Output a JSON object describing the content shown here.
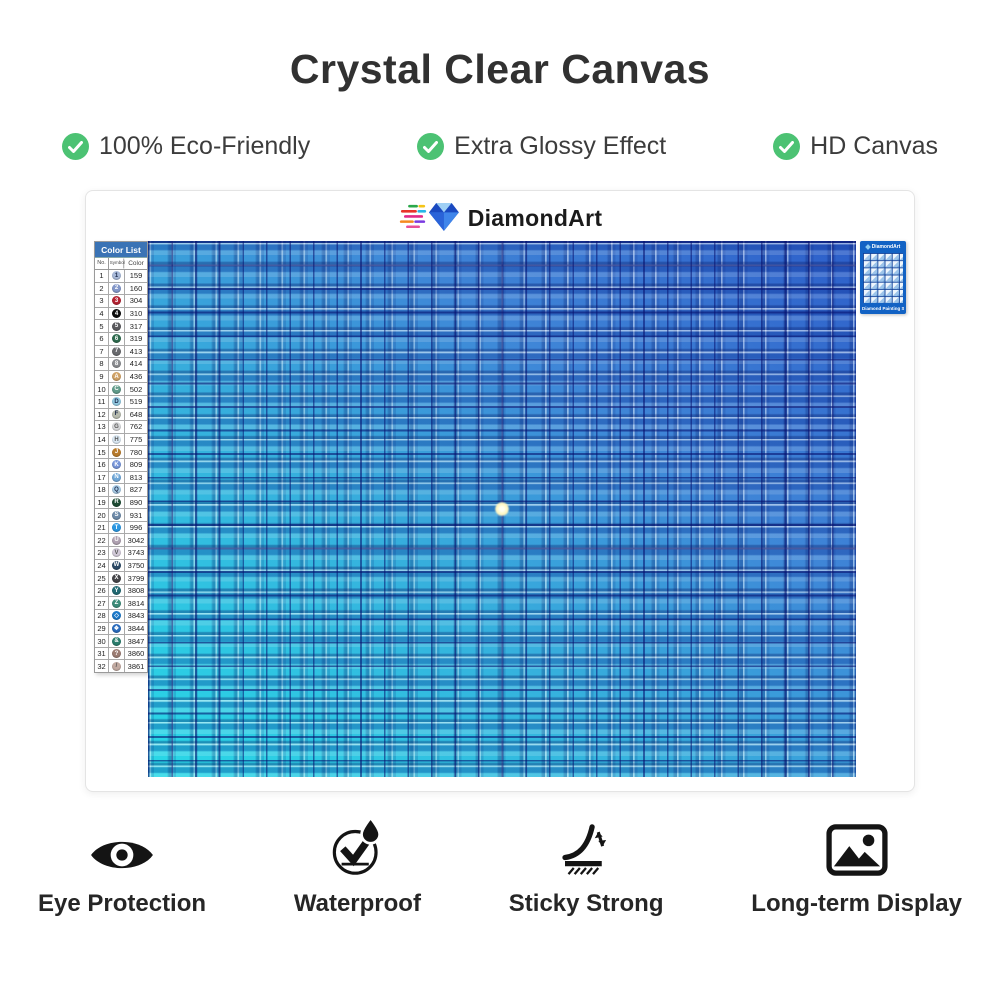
{
  "title": "Crystal Clear Canvas",
  "features": [
    {
      "label": "100% Eco-Friendly"
    },
    {
      "label": "Extra Glossy Effect"
    },
    {
      "label": "HD Canvas"
    }
  ],
  "brand": {
    "logo_text": "DiamondArt"
  },
  "color_list": {
    "title": "Color List",
    "columns": [
      "No.",
      "Symbol",
      "Color"
    ],
    "rows": [
      {
        "no": "1",
        "sym": "1",
        "code": "159",
        "bg": "#a9bad9",
        "fg": "#1b2a4a"
      },
      {
        "no": "2",
        "sym": "2",
        "code": "160",
        "bg": "#8397c9",
        "fg": "#ffffff"
      },
      {
        "no": "3",
        "sym": "3",
        "code": "304",
        "bg": "#b52332",
        "fg": "#ffffff"
      },
      {
        "no": "4",
        "sym": "4",
        "code": "310",
        "bg": "#0c0c0c",
        "fg": "#ffffff"
      },
      {
        "no": "5",
        "sym": "5",
        "code": "317",
        "bg": "#5a5a5e",
        "fg": "#ffffff"
      },
      {
        "no": "6",
        "sym": "6",
        "code": "319",
        "bg": "#2e6b4e",
        "fg": "#ffffff"
      },
      {
        "no": "7",
        "sym": "7",
        "code": "413",
        "bg": "#696a6e",
        "fg": "#ffffff"
      },
      {
        "no": "8",
        "sym": "8",
        "code": "414",
        "bg": "#8b8d91",
        "fg": "#ffffff"
      },
      {
        "no": "9",
        "sym": "A",
        "code": "436",
        "bg": "#d0a266",
        "fg": "#ffffff"
      },
      {
        "no": "10",
        "sym": "C",
        "code": "502",
        "bg": "#619c8b",
        "fg": "#ffffff"
      },
      {
        "no": "11",
        "sym": "D",
        "code": "519",
        "bg": "#93cae2",
        "fg": "#1b2a4a"
      },
      {
        "no": "12",
        "sym": "F",
        "code": "648",
        "bg": "#b7bbae",
        "fg": "#1b2a4a"
      },
      {
        "no": "13",
        "sym": "G",
        "code": "762",
        "bg": "#d9dadc",
        "fg": "#555555"
      },
      {
        "no": "14",
        "sym": "H",
        "code": "775",
        "bg": "#dbe9f4",
        "fg": "#555555"
      },
      {
        "no": "15",
        "sym": "J",
        "code": "780",
        "bg": "#b87b2c",
        "fg": "#ffffff"
      },
      {
        "no": "16",
        "sym": "K",
        "code": "809",
        "bg": "#7795d9",
        "fg": "#ffffff"
      },
      {
        "no": "17",
        "sym": "N",
        "code": "813",
        "bg": "#70a8d9",
        "fg": "#ffffff"
      },
      {
        "no": "18",
        "sym": "Q",
        "code": "827",
        "bg": "#aacee8",
        "fg": "#1b2a4a"
      },
      {
        "no": "19",
        "sym": "R",
        "code": "890",
        "bg": "#1d4b33",
        "fg": "#ffffff"
      },
      {
        "no": "20",
        "sym": "S",
        "code": "931",
        "bg": "#6c89a8",
        "fg": "#ffffff"
      },
      {
        "no": "21",
        "sym": "T",
        "code": "996",
        "bg": "#2a97e2",
        "fg": "#ffffff"
      },
      {
        "no": "22",
        "sym": "U",
        "code": "3042",
        "bg": "#b0a2b2",
        "fg": "#ffffff"
      },
      {
        "no": "23",
        "sym": "V",
        "code": "3743",
        "bg": "#d2cad9",
        "fg": "#555555"
      },
      {
        "no": "24",
        "sym": "W",
        "code": "3750",
        "bg": "#2b4a67",
        "fg": "#ffffff"
      },
      {
        "no": "25",
        "sym": "X",
        "code": "3799",
        "bg": "#454548",
        "fg": "#ffffff"
      },
      {
        "no": "26",
        "sym": "Y",
        "code": "3808",
        "bg": "#226a73",
        "fg": "#ffffff"
      },
      {
        "no": "27",
        "sym": "Z",
        "code": "3814",
        "bg": "#3c8b79",
        "fg": "#ffffff"
      },
      {
        "no": "28",
        "sym": "◇",
        "code": "3843",
        "bg": "#1c79c9",
        "fg": "#ffffff"
      },
      {
        "no": "29",
        "sym": "❖",
        "code": "3844",
        "bg": "#2a6cbd",
        "fg": "#ffffff"
      },
      {
        "no": "30",
        "sym": "&",
        "code": "3847",
        "bg": "#2a7c6c",
        "fg": "#ffffff"
      },
      {
        "no": "31",
        "sym": "?",
        "code": "3860",
        "bg": "#9b7c73",
        "fg": "#ffffff"
      },
      {
        "no": "32",
        "sym": "/",
        "code": "3861",
        "bg": "#c2aaa1",
        "fg": "#555555"
      }
    ]
  },
  "thumbnail": {
    "logo_text": "DiamondArt",
    "caption": "Diamond Painting Se"
  },
  "footer": [
    {
      "icon": "eye-protection-icon",
      "label": "Eye Protection"
    },
    {
      "icon": "waterproof-icon",
      "label": "Waterproof"
    },
    {
      "icon": "sticky-strong-icon",
      "label": "Sticky Strong"
    },
    {
      "icon": "long-term-display-icon",
      "label": "Long-term Display"
    }
  ],
  "colors": {
    "check_green": "#4cc273",
    "canvas_cyan": "#28d9e7",
    "canvas_blue": "#2d5ec9",
    "list_header_bg": "#3a73b5",
    "thumb_bg": "#1262c4"
  }
}
